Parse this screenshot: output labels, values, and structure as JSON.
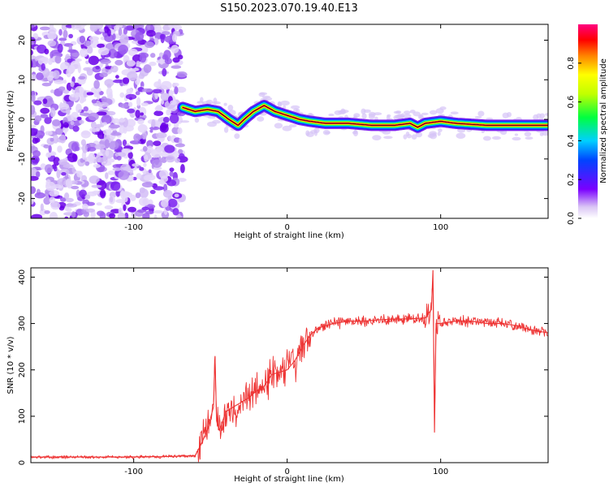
{
  "title": "S150.2023.070.19.40.E13",
  "chart_data": [
    {
      "type": "heatmap",
      "xlabel": "Height of straight line (km)",
      "ylabel": "Frequency (Hz)",
      "xlim": [
        -167,
        170
      ],
      "ylim": [
        -25,
        24
      ],
      "xticks": [
        -100,
        0,
        100
      ],
      "yticks": [
        -20,
        -10,
        0,
        10,
        20
      ],
      "colorbar": {
        "label": "Normalized spectral amplitude",
        "ticks": [
          "0.0",
          "0.2",
          "0.4",
          "0.6",
          "0.8"
        ],
        "range": [
          0,
          1
        ]
      },
      "noise_region": {
        "x_start": -167,
        "x_end": -68
      },
      "ridge": {
        "x": [
          -68,
          -60,
          -52,
          -45,
          -38,
          -32,
          -28,
          -22,
          -15,
          -8,
          0,
          8,
          15,
          25,
          40,
          55,
          70,
          80,
          85,
          90,
          100,
          110,
          130,
          150,
          170
        ],
        "y": [
          3,
          2,
          2.5,
          2,
          0,
          -1.5,
          0,
          2,
          3.5,
          2,
          1,
          0,
          -0.5,
          -1,
          -1,
          -1.5,
          -1.5,
          -1,
          -2,
          -1,
          -0.5,
          -1,
          -1.5,
          -1.5,
          -1.5
        ],
        "peak_amplitude": 0.95
      }
    },
    {
      "type": "line",
      "xlabel": "Height of straight line (km)",
      "ylabel": "SNR (10 * v/v)",
      "xlim": [
        -167,
        170
      ],
      "ylim": [
        0,
        420
      ],
      "xticks": [
        -100,
        0,
        100
      ],
      "yticks": [
        0,
        100,
        200,
        300,
        400
      ],
      "series": [
        {
          "color": "#ee3333",
          "x": [
            -167,
            -140,
            -110,
            -80,
            -60,
            -56,
            -52,
            -48,
            -47,
            -46,
            -44,
            -40,
            -35,
            -30,
            -25,
            -20,
            -15,
            -10,
            -5,
            0,
            5,
            10,
            15,
            20,
            25,
            30,
            40,
            50,
            60,
            70,
            80,
            90,
            94,
            95,
            96,
            97,
            100,
            110,
            120,
            130,
            140,
            150,
            160,
            170
          ],
          "y": [
            12,
            12,
            12,
            13,
            15,
            40,
            70,
            120,
            230,
            90,
            70,
            110,
            120,
            130,
            140,
            155,
            165,
            190,
            195,
            200,
            220,
            250,
            275,
            290,
            295,
            300,
            305,
            305,
            308,
            310,
            310,
            312,
            330,
            415,
            65,
            300,
            300,
            305,
            305,
            300,
            300,
            295,
            285,
            280
          ]
        }
      ]
    }
  ]
}
